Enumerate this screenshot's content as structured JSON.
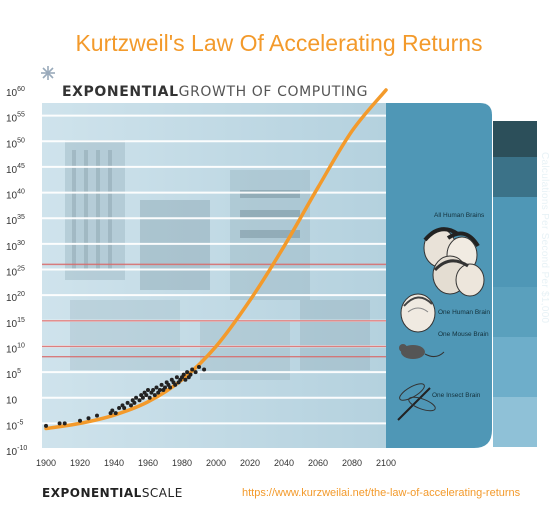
{
  "page_title": "Kurtzweil's Law Of Accelerating Returns",
  "header": {
    "bold": "EXPONENTIAL",
    "light": "GROWTH OF COMPUTING"
  },
  "footer": {
    "bold": "EXPONENTIAL",
    "light": "SCALE",
    "source": "https://www.kurzweilai.net/the-law-of-accelerating-returns"
  },
  "side_label": "Calculations Per Second Per $1,000",
  "colors": {
    "title": "#f39a2b",
    "curve": "#f39a2b",
    "panel": "#4f97b6",
    "panel_dark": "#2c4f5a",
    "reference_line": "#d96a6a",
    "grid": "#ffffff"
  },
  "chart_data": {
    "type": "scatter",
    "title": "Kurtzweil's Law Of Accelerating Returns",
    "xlabel": "",
    "ylabel": "Calculations Per Second Per $1,000",
    "xlim": [
      1900,
      2100
    ],
    "ylim": [
      -10,
      60
    ],
    "y_scale": "log10 (exponent shown)",
    "x_ticks": [
      "1900",
      "1920",
      "1940",
      "1960",
      "1980",
      "2000",
      "2020",
      "2040",
      "2060",
      "2080",
      "2100"
    ],
    "y_ticks": [
      {
        "base": "10",
        "exp": "60",
        "v": 60
      },
      {
        "base": "10",
        "exp": "55",
        "v": 55
      },
      {
        "base": "10",
        "exp": "50",
        "v": 50
      },
      {
        "base": "10",
        "exp": "45",
        "v": 45
      },
      {
        "base": "10",
        "exp": "40",
        "v": 40
      },
      {
        "base": "10",
        "exp": "35",
        "v": 35
      },
      {
        "base": "10",
        "exp": "30",
        "v": 30
      },
      {
        "base": "10",
        "exp": "25",
        "v": 25
      },
      {
        "base": "10",
        "exp": "20",
        "v": 20
      },
      {
        "base": "10",
        "exp": "15",
        "v": 15
      },
      {
        "base": "10",
        "exp": "10",
        "v": 10
      },
      {
        "base": "10",
        "exp": "5",
        "v": 5
      },
      {
        "base": "10",
        "exp": "",
        "v": 0
      },
      {
        "base": "10",
        "exp": "-5",
        "v": -5
      },
      {
        "base": "10",
        "exp": "-10",
        "v": -10
      }
    ],
    "grid": true,
    "series": [
      {
        "type": "scatter",
        "x": [
          1900,
          1908,
          1911,
          1920,
          1925,
          1930,
          1938,
          1939,
          1941,
          1943,
          1945,
          1946,
          1948,
          1950,
          1951,
          1952,
          1953,
          1955,
          1956,
          1957,
          1958,
          1959,
          1960,
          1961,
          1962,
          1963,
          1964,
          1965,
          1966,
          1967,
          1968,
          1969,
          1970,
          1971,
          1972,
          1973,
          1974,
          1975,
          1976,
          1977,
          1978,
          1979,
          1980,
          1981,
          1982,
          1983,
          1984,
          1985,
          1986,
          1988,
          1990,
          1993
        ],
        "y": [
          -5.5,
          -5,
          -5,
          -4.5,
          -4,
          -3.5,
          -3,
          -2.5,
          -3,
          -2,
          -1.5,
          -2,
          -1,
          -1.5,
          -0.5,
          -1,
          0,
          -0.5,
          0.5,
          0,
          1,
          0.5,
          1.5,
          0,
          1,
          1.5,
          0.5,
          2,
          1,
          1.5,
          2.5,
          1.5,
          2,
          3,
          2.5,
          2,
          3.5,
          3,
          2.5,
          4,
          3,
          3.5,
          4,
          4.5,
          3.5,
          5,
          4,
          4.5,
          5.5,
          5,
          6,
          5.5
        ]
      },
      {
        "type": "line",
        "x": [
          1900,
          1920,
          1940,
          1960,
          1980,
          2000,
          2020,
          2040,
          2060,
          2080,
          2100
        ],
        "y": [
          -6,
          -5,
          -3.4,
          -0.8,
          3.5,
          10,
          19,
          29.5,
          41,
          52,
          60
        ]
      }
    ],
    "reference_lines": [
      {
        "label": "All Human Brains",
        "y": 26
      },
      {
        "label": "One Human Brain",
        "y": 15
      },
      {
        "label": "One Mouse Brain",
        "y": 10
      },
      {
        "label": "",
        "y": 8
      }
    ],
    "annotations": [
      "All Human Brains",
      "One Human Brain",
      "One Mouse Brain",
      "One Insect Brain"
    ]
  }
}
